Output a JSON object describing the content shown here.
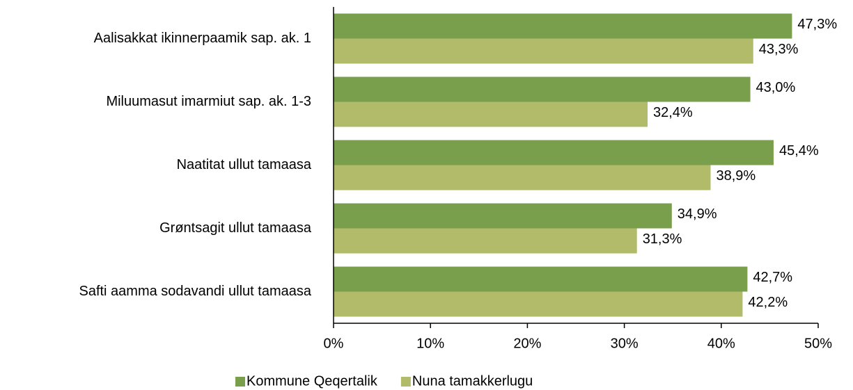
{
  "chart_data": {
    "type": "hbar",
    "categories": [
      "Aalisakkat ikinnerpaamik sap. ak. 1",
      "Miluumasut imarmiut sap. ak. 1-3",
      "Naatitat ullut tamaasa",
      "Grøntsagit ullut tamaasa",
      "Safti aamma sodavandi ullut tamaasa"
    ],
    "series": [
      {
        "name": "Kommune Qeqertalik",
        "color": "#7a9f4c",
        "values": [
          47.3,
          43.0,
          45.4,
          34.9,
          42.7
        ],
        "value_labels": [
          "47,3%",
          "43,0%",
          "45,4%",
          "34,9%",
          "42,7%"
        ]
      },
      {
        "name": "Nuna tamakkerlugu",
        "color": "#b1bb6a",
        "values": [
          43.3,
          32.4,
          38.9,
          31.3,
          42.2
        ],
        "value_labels": [
          "43,3%",
          "32,4%",
          "38,9%",
          "31,3%",
          "42,2%"
        ]
      }
    ],
    "xlim": [
      0,
      50
    ],
    "xticks": [
      {
        "value": 0,
        "label": "0%"
      },
      {
        "value": 10,
        "label": "10%"
      },
      {
        "value": 20,
        "label": "20%"
      },
      {
        "value": 30,
        "label": "30%"
      },
      {
        "value": 40,
        "label": "40%"
      },
      {
        "value": 50,
        "label": "50%"
      }
    ],
    "legend": "bottom"
  }
}
